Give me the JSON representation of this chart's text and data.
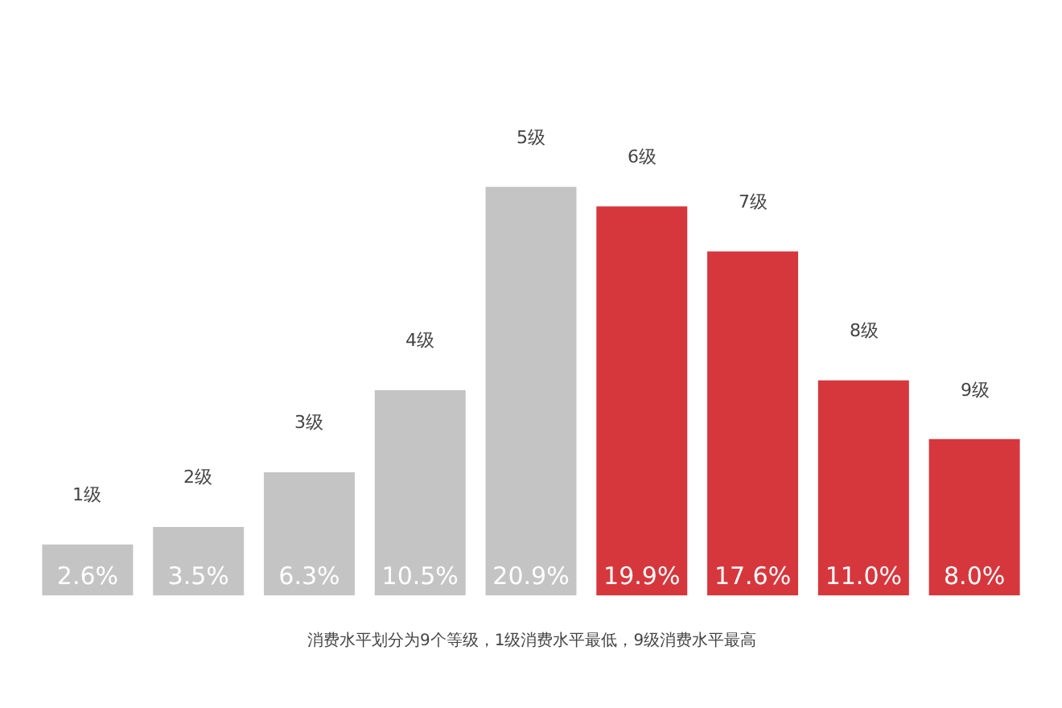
{
  "chart_data": {
    "type": "bar",
    "categories": [
      "1级",
      "2级",
      "3级",
      "4级",
      "5级",
      "6级",
      "7级",
      "8级",
      "9级"
    ],
    "values": [
      2.6,
      3.5,
      6.3,
      10.5,
      20.9,
      19.9,
      17.6,
      11.0,
      8.0
    ],
    "value_labels": [
      "2.6%",
      "3.5%",
      "6.3%",
      "10.5%",
      "20.9%",
      "19.9%",
      "17.6%",
      "11.0%",
      "8.0%"
    ],
    "colors": [
      "#c4c4c4",
      "#c4c4c4",
      "#c4c4c4",
      "#c4c4c4",
      "#c4c4c4",
      "#d6373d",
      "#d6373d",
      "#d6373d",
      "#d6373d"
    ],
    "annotations": [
      "消费水平划分为9个等级，1级消费水平最低，9级消费水平最高"
    ],
    "legend": false
  }
}
